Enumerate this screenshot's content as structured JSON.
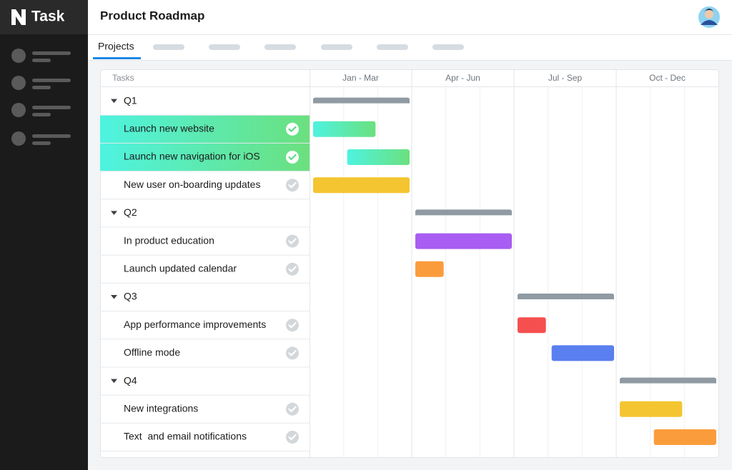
{
  "app": {
    "name": "Task"
  },
  "header": {
    "title": "Product Roadmap"
  },
  "tabs": [
    "Projects"
  ],
  "gantt": {
    "column_header": "Tasks",
    "periods": [
      "Jan - Mar",
      "Apr - Jun",
      "Jul - Sep",
      "Oct - Dec"
    ],
    "summary_color": "#8f9aa3",
    "groups": [
      {
        "label": "Q1",
        "start": 0,
        "end": 3,
        "tasks": [
          {
            "name": "Launch new website",
            "start": 0,
            "end": 2,
            "done": true,
            "gradient": [
              "#4ef3e0",
              "#6be07e"
            ]
          },
          {
            "name": "Launch new navigation for iOS",
            "start": 1,
            "end": 3,
            "done": true,
            "gradient": [
              "#4ef3e0",
              "#6be07e"
            ]
          },
          {
            "name": "New user on-boarding updates",
            "start": 0,
            "end": 3,
            "done": false,
            "color": "#f4c531"
          }
        ]
      },
      {
        "label": "Q2",
        "start": 3,
        "end": 6,
        "tasks": [
          {
            "name": "In product education",
            "start": 3,
            "end": 6,
            "done": false,
            "color": "#a95df2"
          },
          {
            "name": "Launch updated calendar",
            "start": 3,
            "end": 4,
            "done": false,
            "color": "#fb9c3c"
          }
        ]
      },
      {
        "label": "Q3",
        "start": 6,
        "end": 9,
        "tasks": [
          {
            "name": "App performance improvements",
            "start": 6,
            "end": 7,
            "done": false,
            "color": "#f5504f"
          },
          {
            "name": "Offline mode",
            "start": 7,
            "end": 9,
            "done": false,
            "color": "#5a7ff0"
          }
        ]
      },
      {
        "label": "Q4",
        "start": 9,
        "end": 12,
        "tasks": [
          {
            "name": "New integrations",
            "start": 9,
            "end": 11,
            "done": false,
            "color": "#f4c531"
          },
          {
            "name": "Text  and email notifications",
            "start": 10,
            "end": 12,
            "done": false,
            "color": "#fb9c3c"
          }
        ]
      }
    ]
  }
}
